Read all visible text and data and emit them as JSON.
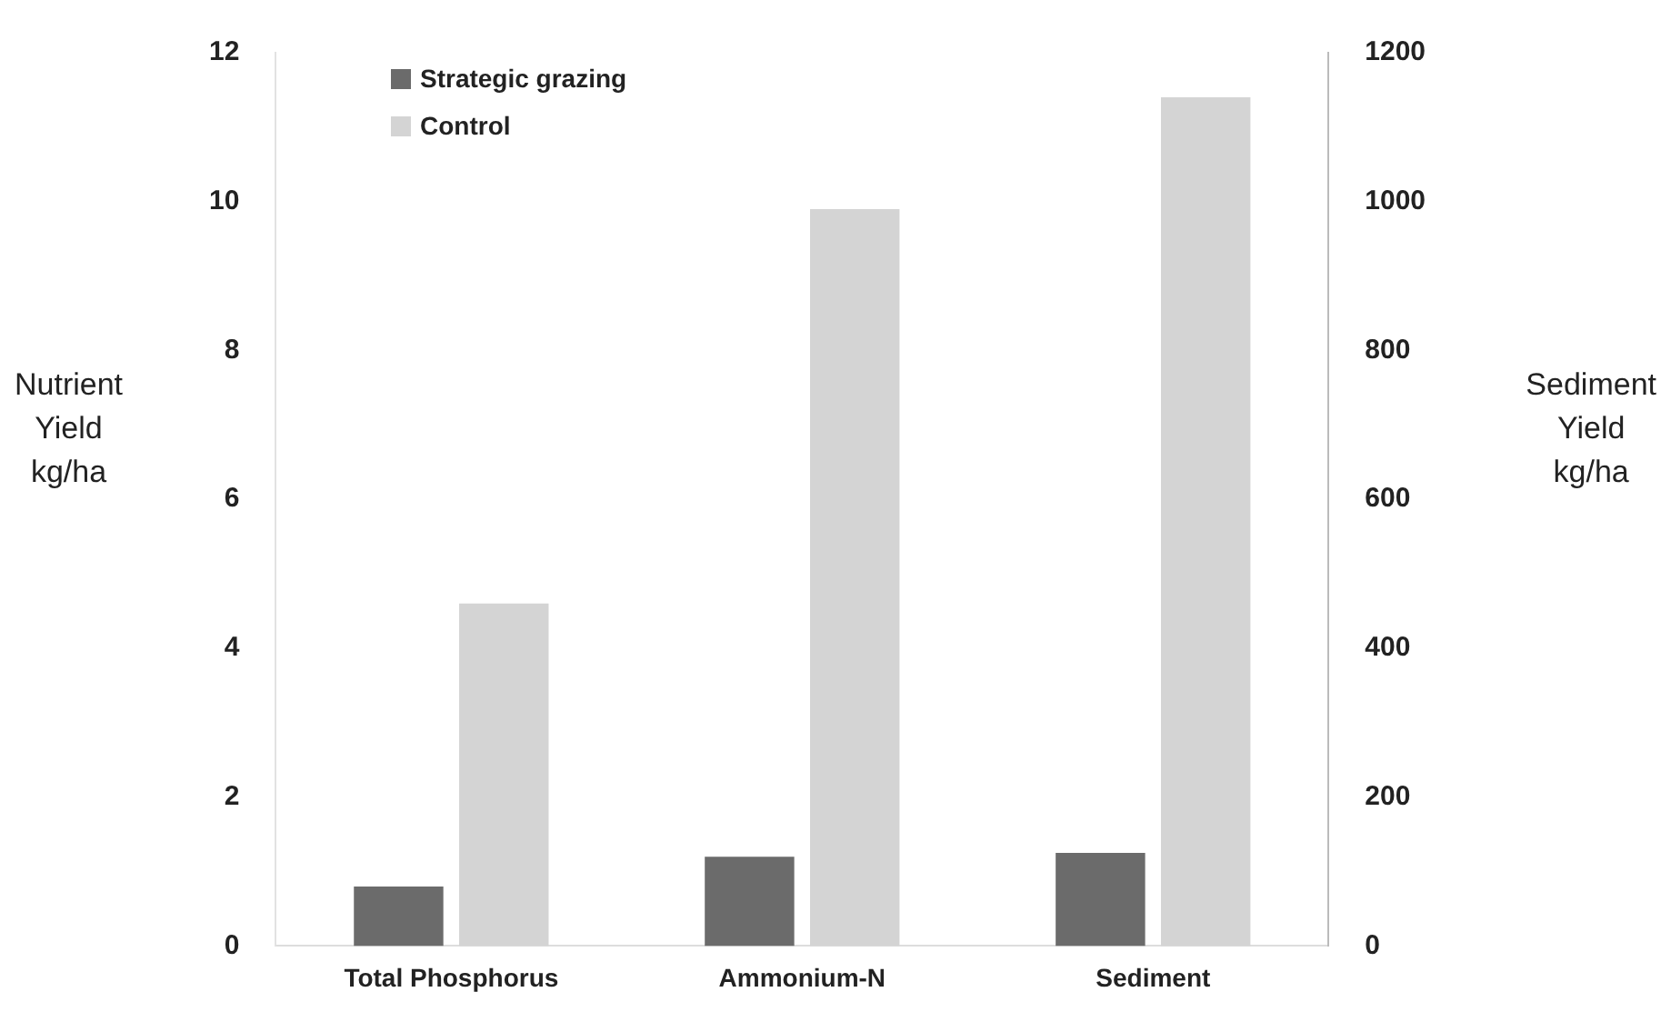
{
  "chart_data": {
    "type": "bar",
    "ylabel": "Nutrient\nYield\nkg/ha",
    "y2label": "Sediment\nYield\nkg/ha",
    "categories": [
      "Total Phosphorus",
      "Ammonium-N",
      "Sediment"
    ],
    "series": [
      {
        "name": "Strategic grazing",
        "color": "#6b6b6b",
        "values": [
          0.8,
          1.2,
          null
        ]
      },
      {
        "name": "Control",
        "color": "#d4d4d4",
        "values": [
          4.6,
          9.9,
          null
        ]
      },
      {
        "color": "#6b6b6b",
        "axis": "y2",
        "values": [
          null,
          null,
          125
        ]
      },
      {
        "color": "#d4d4d4",
        "axis": "y2",
        "values": [
          null,
          null,
          1140
        ]
      }
    ],
    "ylim": [
      0,
      12
    ],
    "yticks": [
      0,
      2,
      4,
      6,
      8,
      10,
      12
    ],
    "y2lim": [
      0,
      1200
    ],
    "y2ticks": [
      0,
      200,
      400,
      600,
      800,
      1000,
      1200
    ],
    "grid": false,
    "legend": "top left"
  }
}
